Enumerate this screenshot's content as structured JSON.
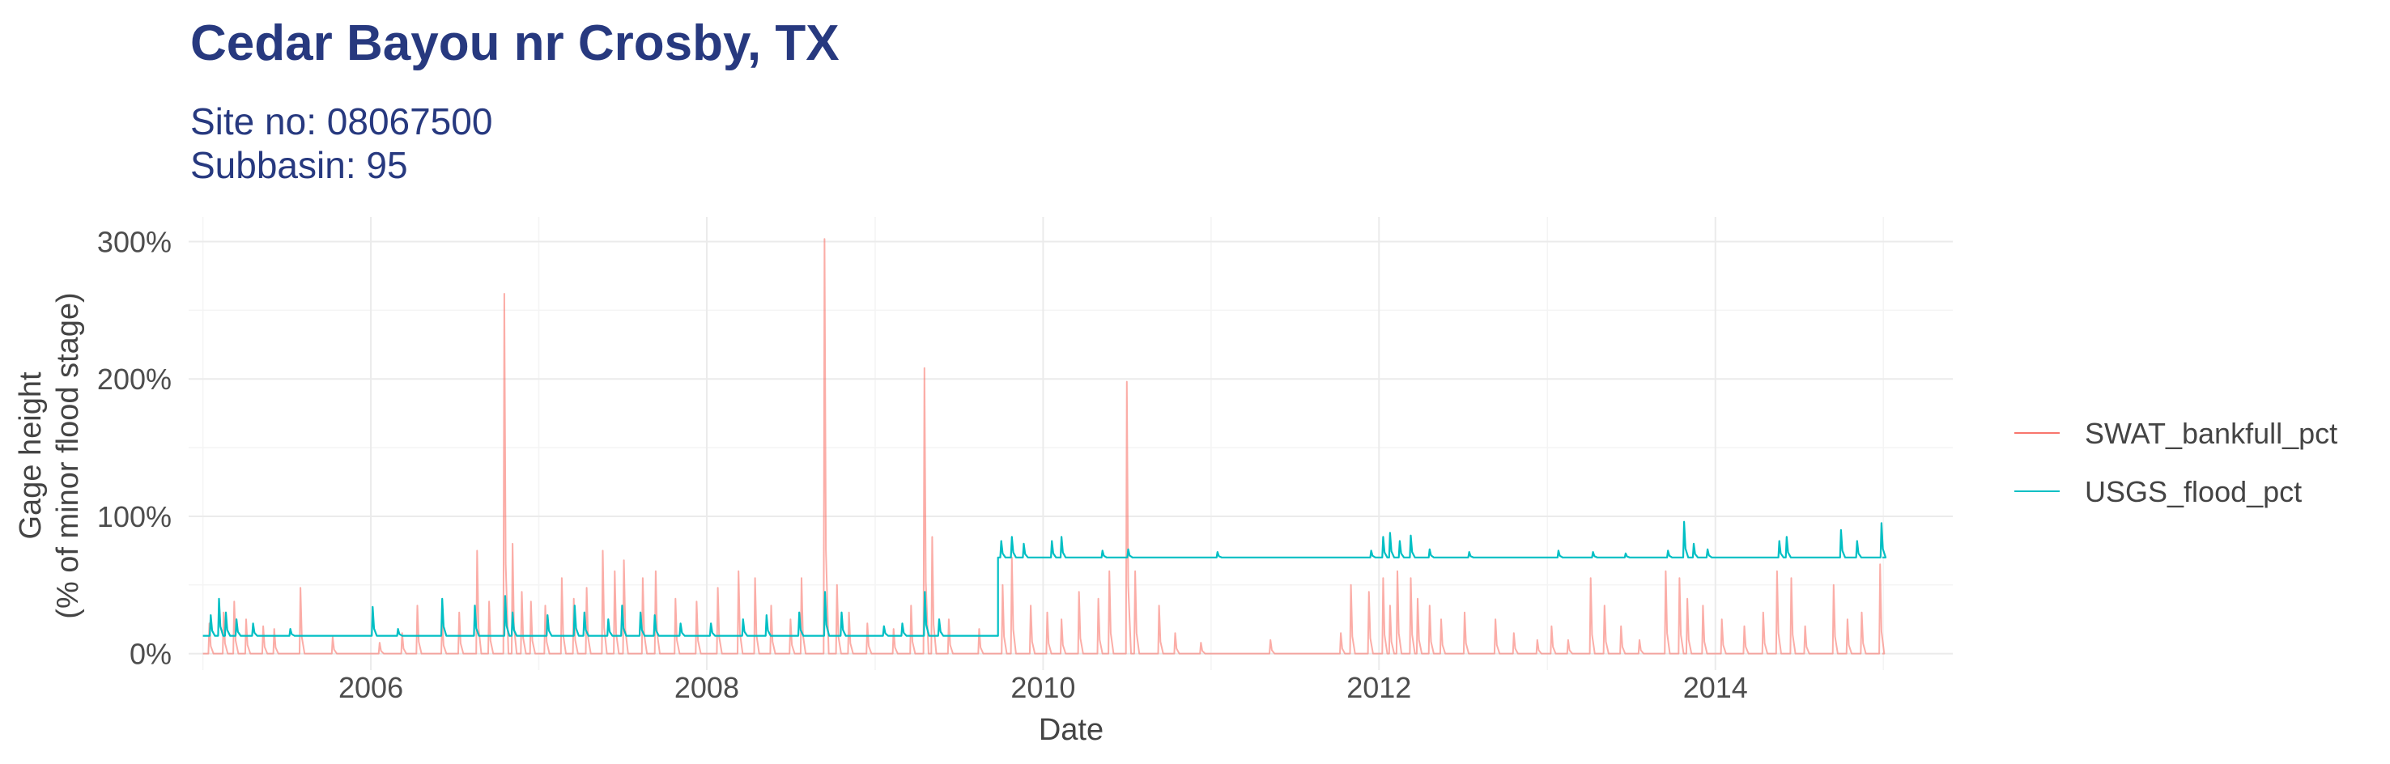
{
  "chart_data": {
    "type": "line",
    "title": "Cedar Bayou nr Crosby, TX",
    "subtitle_lines": [
      "Site no: 08067500",
      "Subbasin: 95"
    ],
    "xlabel": "Date",
    "ylabel_lines": [
      "Gage height",
      "(% of minor flood stage)"
    ],
    "xlim": [
      "2004-12-01",
      "2015-06-01"
    ],
    "ylim": [
      -12,
      318
    ],
    "grid": true,
    "legend_position": "right",
    "x_ticks": [
      {
        "label": "2006",
        "date": "2006-01-01"
      },
      {
        "label": "2008",
        "date": "2008-01-01"
      },
      {
        "label": "2010",
        "date": "2010-01-01"
      },
      {
        "label": "2012",
        "date": "2012-01-01"
      },
      {
        "label": "2014",
        "date": "2014-01-01"
      }
    ],
    "x_minor_ticks": [
      "2005-01-01",
      "2007-01-01",
      "2009-01-01",
      "2011-01-01",
      "2013-01-01",
      "2015-01-01"
    ],
    "y_ticks": [
      {
        "label": "0%",
        "value": 0
      },
      {
        "label": "100%",
        "value": 100
      },
      {
        "label": "200%",
        "value": 200
      },
      {
        "label": "300%",
        "value": 300
      }
    ],
    "y_minor_ticks": [
      50,
      150,
      250
    ],
    "series": [
      {
        "name": "SWAT_bankfull_pct",
        "color": "#F8766D",
        "baseline": 0,
        "peaks": [
          [
            "2005-01-15",
            22
          ],
          [
            "2005-02-15",
            30
          ],
          [
            "2005-03-10",
            38
          ],
          [
            "2005-04-05",
            25
          ],
          [
            "2005-05-12",
            20
          ],
          [
            "2005-06-05",
            18
          ],
          [
            "2005-08-01",
            48
          ],
          [
            "2005-10-10",
            12
          ],
          [
            "2006-01-20",
            8
          ],
          [
            "2006-03-10",
            15
          ],
          [
            "2006-04-12",
            35
          ],
          [
            "2006-06-05",
            24
          ],
          [
            "2006-07-12",
            30
          ],
          [
            "2006-08-20",
            75
          ],
          [
            "2006-09-15",
            38
          ],
          [
            "2006-10-18",
            262
          ],
          [
            "2006-11-05",
            80
          ],
          [
            "2006-11-25",
            45
          ],
          [
            "2006-12-15",
            38
          ],
          [
            "2007-01-15",
            35
          ],
          [
            "2007-02-20",
            55
          ],
          [
            "2007-03-18",
            40
          ],
          [
            "2007-04-15",
            48
          ],
          [
            "2007-05-20",
            75
          ],
          [
            "2007-06-15",
            60
          ],
          [
            "2007-07-05",
            68
          ],
          [
            "2007-08-15",
            55
          ],
          [
            "2007-09-12",
            60
          ],
          [
            "2007-10-25",
            40
          ],
          [
            "2007-12-10",
            38
          ],
          [
            "2008-01-25",
            48
          ],
          [
            "2008-03-10",
            60
          ],
          [
            "2008-04-15",
            55
          ],
          [
            "2008-05-20",
            35
          ],
          [
            "2008-07-01",
            25
          ],
          [
            "2008-07-25",
            55
          ],
          [
            "2008-09-13",
            302
          ],
          [
            "2008-10-10",
            50
          ],
          [
            "2008-11-05",
            30
          ],
          [
            "2008-12-15",
            22
          ],
          [
            "2009-02-10",
            18
          ],
          [
            "2009-03-20",
            35
          ],
          [
            "2009-04-18",
            208
          ],
          [
            "2009-05-05",
            85
          ],
          [
            "2009-06-10",
            25
          ],
          [
            "2009-08-15",
            18
          ],
          [
            "2009-10-05",
            50
          ],
          [
            "2009-10-25",
            70
          ],
          [
            "2009-12-05",
            35
          ],
          [
            "2010-01-10",
            30
          ],
          [
            "2010-02-10",
            25
          ],
          [
            "2010-03-20",
            45
          ],
          [
            "2010-05-01",
            40
          ],
          [
            "2010-05-25",
            60
          ],
          [
            "2010-07-02",
            198
          ],
          [
            "2010-07-20",
            60
          ],
          [
            "2010-09-10",
            35
          ],
          [
            "2010-10-15",
            15
          ],
          [
            "2010-12-10",
            8
          ],
          [
            "2011-05-10",
            10
          ],
          [
            "2011-10-10",
            15
          ],
          [
            "2011-11-01",
            50
          ],
          [
            "2011-12-10",
            45
          ],
          [
            "2012-01-10",
            55
          ],
          [
            "2012-01-25",
            35
          ],
          [
            "2012-02-10",
            60
          ],
          [
            "2012-03-10",
            55
          ],
          [
            "2012-03-25",
            40
          ],
          [
            "2012-04-20",
            35
          ],
          [
            "2012-05-15",
            25
          ],
          [
            "2012-07-05",
            30
          ],
          [
            "2012-09-10",
            25
          ],
          [
            "2012-10-20",
            15
          ],
          [
            "2012-12-10",
            10
          ],
          [
            "2013-01-10",
            20
          ],
          [
            "2013-02-15",
            10
          ],
          [
            "2013-04-05",
            55
          ],
          [
            "2013-05-05",
            35
          ],
          [
            "2013-06-10",
            20
          ],
          [
            "2013-07-20",
            10
          ],
          [
            "2013-09-15",
            60
          ],
          [
            "2013-10-15",
            55
          ],
          [
            "2013-11-01",
            40
          ],
          [
            "2013-12-05",
            35
          ],
          [
            "2014-01-15",
            25
          ],
          [
            "2014-03-05",
            20
          ],
          [
            "2014-04-15",
            30
          ],
          [
            "2014-05-15",
            60
          ],
          [
            "2014-06-15",
            55
          ],
          [
            "2014-07-15",
            20
          ],
          [
            "2014-09-15",
            50
          ],
          [
            "2014-10-15",
            25
          ],
          [
            "2014-11-15",
            30
          ],
          [
            "2014-12-25",
            65
          ]
        ]
      },
      {
        "name": "USGS_flood_pct",
        "color": "#00BFC4",
        "baseline": 13,
        "step": {
          "date": "2009-09-25",
          "before": 13,
          "after": 70
        },
        "peaks": [
          [
            "2005-01-18",
            28
          ],
          [
            "2005-02-05",
            40
          ],
          [
            "2005-02-20",
            30
          ],
          [
            "2005-03-15",
            25
          ],
          [
            "2005-04-20",
            22
          ],
          [
            "2005-07-10",
            18
          ],
          [
            "2006-01-05",
            34
          ],
          [
            "2006-03-01",
            18
          ],
          [
            "2006-06-05",
            40
          ],
          [
            "2006-08-15",
            35
          ],
          [
            "2006-10-20",
            42
          ],
          [
            "2006-11-05",
            30
          ],
          [
            "2007-01-20",
            28
          ],
          [
            "2007-03-20",
            35
          ],
          [
            "2007-04-10",
            30
          ],
          [
            "2007-06-01",
            25
          ],
          [
            "2007-07-01",
            35
          ],
          [
            "2007-08-10",
            30
          ],
          [
            "2007-09-10",
            28
          ],
          [
            "2007-11-05",
            22
          ],
          [
            "2008-01-10",
            22
          ],
          [
            "2008-03-20",
            25
          ],
          [
            "2008-05-10",
            28
          ],
          [
            "2008-07-20",
            30
          ],
          [
            "2008-09-14",
            45
          ],
          [
            "2008-10-20",
            30
          ],
          [
            "2009-01-20",
            20
          ],
          [
            "2009-03-01",
            22
          ],
          [
            "2009-04-19",
            45
          ],
          [
            "2009-05-20",
            25
          ],
          [
            "2009-10-02",
            82
          ],
          [
            "2009-10-25",
            85
          ],
          [
            "2009-11-20",
            80
          ],
          [
            "2010-01-20",
            82
          ],
          [
            "2010-02-10",
            85
          ],
          [
            "2010-05-10",
            75
          ],
          [
            "2010-07-05",
            76
          ],
          [
            "2011-01-15",
            74
          ],
          [
            "2011-12-15",
            75
          ],
          [
            "2012-01-10",
            85
          ],
          [
            "2012-01-25",
            88
          ],
          [
            "2012-02-15",
            82
          ],
          [
            "2012-03-10",
            86
          ],
          [
            "2012-04-20",
            76
          ],
          [
            "2012-07-15",
            74
          ],
          [
            "2013-01-25",
            75
          ],
          [
            "2013-04-10",
            74
          ],
          [
            "2013-06-20",
            73
          ],
          [
            "2013-09-20",
            75
          ],
          [
            "2013-10-25",
            96
          ],
          [
            "2013-11-15",
            80
          ],
          [
            "2013-12-15",
            76
          ],
          [
            "2014-05-20",
            82
          ],
          [
            "2014-06-05",
            85
          ],
          [
            "2014-10-01",
            90
          ],
          [
            "2014-11-05",
            82
          ],
          [
            "2014-12-28",
            95
          ]
        ]
      }
    ]
  }
}
